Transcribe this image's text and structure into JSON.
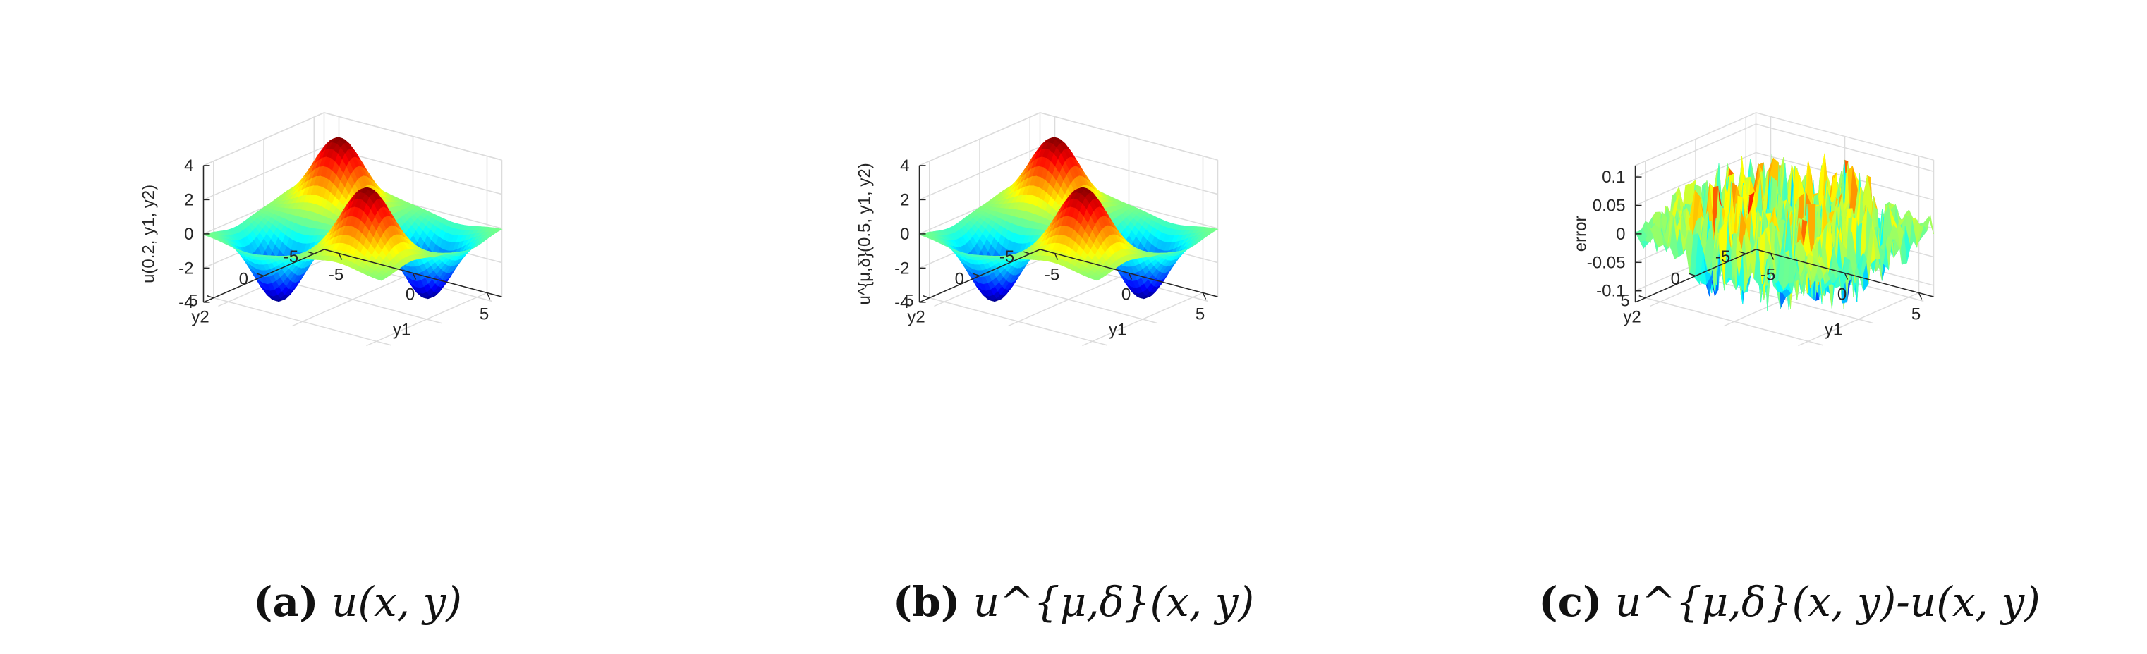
{
  "chart_data": [
    {
      "type": "surface",
      "function": "u",
      "xlabel": "y1",
      "ylabel": "y2",
      "zlabel": "u(0.2, y1, y2)",
      "x_range": [
        -6,
        6
      ],
      "y_range": [
        -6,
        6
      ],
      "zlim": [
        -4,
        4
      ],
      "x_ticks": [
        "-5",
        "0",
        "5"
      ],
      "y_ticks": [
        "-5",
        "0",
        "5"
      ],
      "z_ticks": [
        "4",
        "2",
        "0",
        "-2",
        "-4"
      ],
      "colormap": "jet",
      "grid": true,
      "caption_letter": "(a)",
      "caption_expr": "u(x, y)"
    },
    {
      "type": "surface",
      "function": "u",
      "xlabel": "y1",
      "ylabel": "y2",
      "zlabel": "u^{μ,δ}(0.5, y1, y2)",
      "x_range": [
        -6,
        6
      ],
      "y_range": [
        -6,
        6
      ],
      "zlim": [
        -4,
        4
      ],
      "x_ticks": [
        "-5",
        "0",
        "5"
      ],
      "y_ticks": [
        "-5",
        "0",
        "5"
      ],
      "z_ticks": [
        "4",
        "2",
        "0",
        "-2",
        "-4"
      ],
      "colormap": "jet",
      "grid": true,
      "caption_letter": "(b)",
      "caption_expr": "u^{μ,δ}(x, y)"
    },
    {
      "type": "surface",
      "function": "error",
      "xlabel": "y1",
      "ylabel": "y2",
      "zlabel": "error",
      "x_range": [
        -6,
        6
      ],
      "y_range": [
        -6,
        6
      ],
      "zlim": [
        -0.12,
        0.12
      ],
      "x_ticks": [
        "-5",
        "0",
        "5"
      ],
      "y_ticks": [
        "-5",
        "0",
        "5"
      ],
      "z_ticks": [
        "0.1",
        "0.05",
        "0",
        "-0.05",
        "-0.1"
      ],
      "colormap": "jet",
      "grid": true,
      "caption_letter": "(c)",
      "caption_expr": "u^{μ,δ}(x, y)-u(x, y)"
    }
  ]
}
